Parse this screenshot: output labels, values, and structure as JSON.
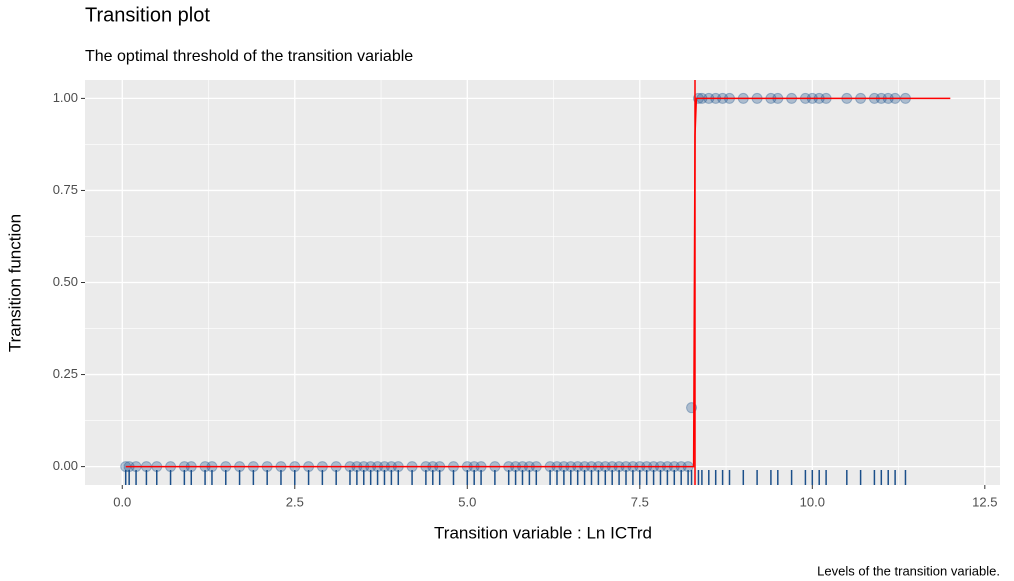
{
  "chart_data": {
    "type": "scatter",
    "title": "Transition plot",
    "subtitle": "The optimal threshold of the transition variable",
    "x_label": "Transition variable : Ln ICTrd",
    "y_label": "Transition function",
    "caption": "Levels of the transition variable.",
    "xlim": [
      -0.54,
      12.72
    ],
    "ylim": [
      -0.05,
      1.05
    ],
    "xticks": [
      {
        "value": 0,
        "label": "0.0"
      },
      2.5,
      {
        "value": 5,
        "label": "5.0"
      },
      7.5,
      {
        "value": 10,
        "label": "10.0"
      },
      12.5
    ],
    "yticks": [
      {
        "value": 0,
        "label": "0.00"
      },
      {
        "value": 0.25,
        "label": "0.25"
      },
      {
        "value": 0.5,
        "label": "0.50"
      },
      {
        "value": 0.75,
        "label": "0.75"
      },
      {
        "value": 1,
        "label": "1.00"
      }
    ],
    "x_minor_ticks": [
      1.25,
      3.75,
      6.25,
      8.75,
      11.25
    ],
    "y_minor_ticks": [
      0.125,
      0.375,
      0.625,
      0.875
    ],
    "grid": true,
    "color": "#1b4f8a",
    "x": [
      0.05,
      0.1,
      0.2,
      0.35,
      0.5,
      0.7,
      0.9,
      1.0,
      1.2,
      1.3,
      1.5,
      1.7,
      1.9,
      2.1,
      2.3,
      2.5,
      2.7,
      2.9,
      3.1,
      3.3,
      3.4,
      3.5,
      3.6,
      3.7,
      3.8,
      3.9,
      4.0,
      4.2,
      4.4,
      4.5,
      4.6,
      4.8,
      5.0,
      5.1,
      5.2,
      5.4,
      5.6,
      5.7,
      5.8,
      5.9,
      6.0,
      6.2,
      6.3,
      6.4,
      6.5,
      6.6,
      6.7,
      6.8,
      6.9,
      7.0,
      7.1,
      7.2,
      7.3,
      7.4,
      7.5,
      7.6,
      7.7,
      7.8,
      7.9,
      8.0,
      8.1,
      8.2,
      8.25,
      8.35,
      8.4,
      8.5,
      8.6,
      8.7,
      8.8,
      9.0,
      9.2,
      9.4,
      9.5,
      9.7,
      9.9,
      10.0,
      10.1,
      10.2,
      10.5,
      10.7,
      10.9,
      11.0,
      11.1,
      11.2,
      11.35
    ],
    "values": [
      0,
      0,
      0,
      0,
      0,
      0,
      0,
      0,
      0,
      0,
      0,
      0,
      0,
      0,
      0,
      0,
      0,
      0,
      0,
      0,
      0,
      0,
      0,
      0,
      0,
      0,
      0,
      0,
      0,
      0,
      0,
      0,
      0,
      0,
      0,
      0,
      0,
      0,
      0,
      0,
      0,
      0,
      0,
      0,
      0,
      0,
      0,
      0,
      0,
      0,
      0,
      0,
      0,
      0,
      0,
      0,
      0,
      0,
      0,
      0,
      0,
      0,
      0.16,
      1,
      1,
      1,
      1,
      1,
      1,
      1,
      1,
      1,
      1,
      1,
      1,
      1,
      1,
      1,
      1,
      1,
      1,
      1,
      1,
      1,
      1
    ],
    "curve": {
      "color": "#ff0000",
      "x": [
        0.05,
        8.28,
        8.3,
        8.32,
        12
      ],
      "values": [
        0,
        0,
        0.9,
        1,
        1
      ]
    },
    "threshold": 8.3
  }
}
